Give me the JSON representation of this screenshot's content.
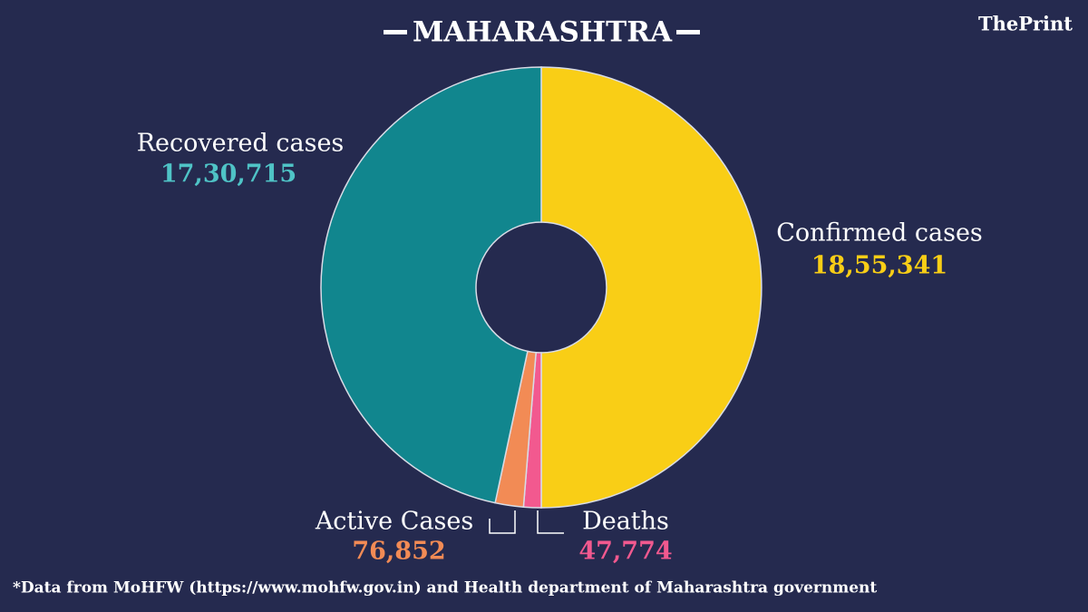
{
  "chart_data": {
    "type": "pie",
    "title": "MAHARASHTRA",
    "brand": "ThePrint",
    "note": "*Data from MoHFW (https://www.mohfw.gov.in)  and Health department of  Maharashtra government",
    "categories": [
      "Confirmed cases",
      "Deaths",
      "Active Cases",
      "Recovered cases"
    ],
    "values": [
      1855341,
      47774,
      76852,
      1730715
    ],
    "value_labels": [
      "18,55,341",
      "47,774",
      "76,852",
      "17,30,715"
    ],
    "colors": [
      "#f9ce16",
      "#f2598f",
      "#f28b55",
      "#11868e"
    ]
  }
}
